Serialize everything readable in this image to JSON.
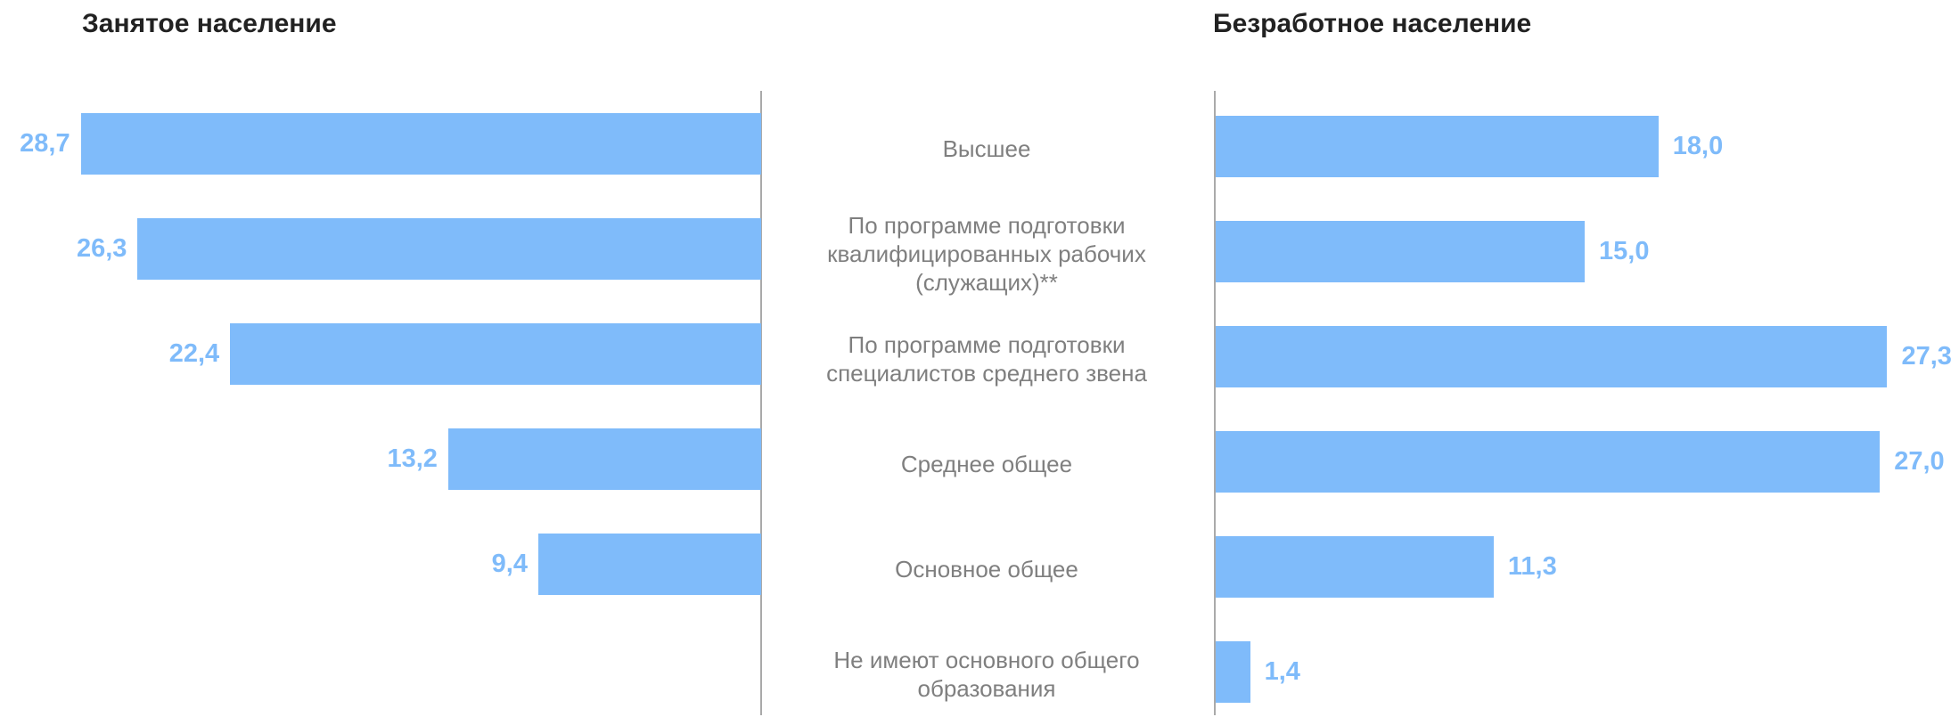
{
  "chart_data": [
    {
      "type": "bar",
      "title": "Занятое население",
      "color": "#7fbbfa",
      "categories": [
        "Высшее",
        "По программе подготовки квалифицированных рабочих (служащих)**",
        "По программе подготовки специалистов среднего звена",
        "Среднее общее",
        "Основное общее",
        "Не имеют основного общего образования"
      ],
      "values": [
        28.7,
        26.3,
        22.4,
        13.2,
        9.4,
        null
      ],
      "value_labels": [
        "28,7",
        "26,3",
        "22,4",
        "13,2",
        "9,4",
        null
      ]
    },
    {
      "type": "bar",
      "title": "Безработное население",
      "color": "#7fbbfa",
      "values": [
        18.0,
        15.0,
        27.3,
        27.0,
        11.3,
        1.4
      ],
      "value_labels": [
        "18,0",
        "15,0",
        "27,3",
        "27,0",
        "11,3",
        "1,4"
      ]
    }
  ]
}
